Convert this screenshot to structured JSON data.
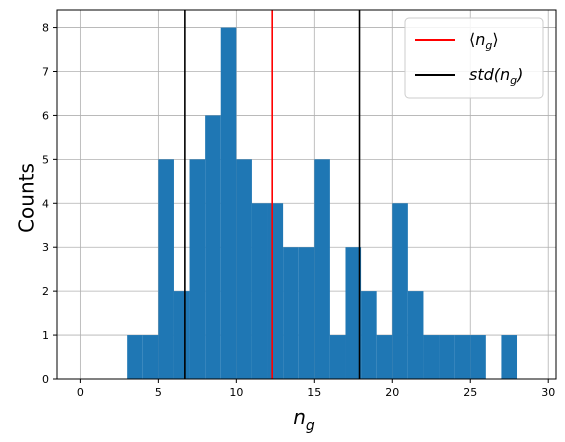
{
  "chart_data": {
    "type": "bar",
    "subtype": "histogram",
    "bin_width": 1,
    "bins": [
      {
        "x0": 3,
        "count": 1
      },
      {
        "x0": 4,
        "count": 1
      },
      {
        "x0": 5,
        "count": 5
      },
      {
        "x0": 6,
        "count": 2
      },
      {
        "x0": 7,
        "count": 5
      },
      {
        "x0": 8,
        "count": 6
      },
      {
        "x0": 9,
        "count": 8
      },
      {
        "x0": 10,
        "count": 5
      },
      {
        "x0": 11,
        "count": 4
      },
      {
        "x0": 12,
        "count": 4
      },
      {
        "x0": 13,
        "count": 3
      },
      {
        "x0": 14,
        "count": 3
      },
      {
        "x0": 15,
        "count": 5
      },
      {
        "x0": 16,
        "count": 1
      },
      {
        "x0": 17,
        "count": 3
      },
      {
        "x0": 18,
        "count": 2
      },
      {
        "x0": 19,
        "count": 1
      },
      {
        "x0": 20,
        "count": 4
      },
      {
        "x0": 21,
        "count": 2
      },
      {
        "x0": 22,
        "count": 1
      },
      {
        "x0": 23,
        "count": 1
      },
      {
        "x0": 24,
        "count": 1
      },
      {
        "x0": 25,
        "count": 1
      },
      {
        "x0": 27,
        "count": 1
      }
    ],
    "bar_color": "#1f77b4",
    "mean_line": {
      "x": 12.3,
      "color": "#ff0000",
      "label": "⟨n_g⟩"
    },
    "std_lines": {
      "x": [
        6.7,
        17.9
      ],
      "color": "#000000",
      "label": "std(n_g)"
    },
    "xlabel": "n_g",
    "ylabel": "Counts",
    "xlim": [
      -1.5,
      30.5
    ],
    "ylim": [
      0,
      8.4
    ],
    "xticks": [
      0,
      5,
      10,
      15,
      20,
      25,
      30
    ],
    "yticks": [
      0,
      1,
      2,
      3,
      4,
      5,
      6,
      7,
      8
    ],
    "grid": true,
    "legend_position": "top-right"
  }
}
